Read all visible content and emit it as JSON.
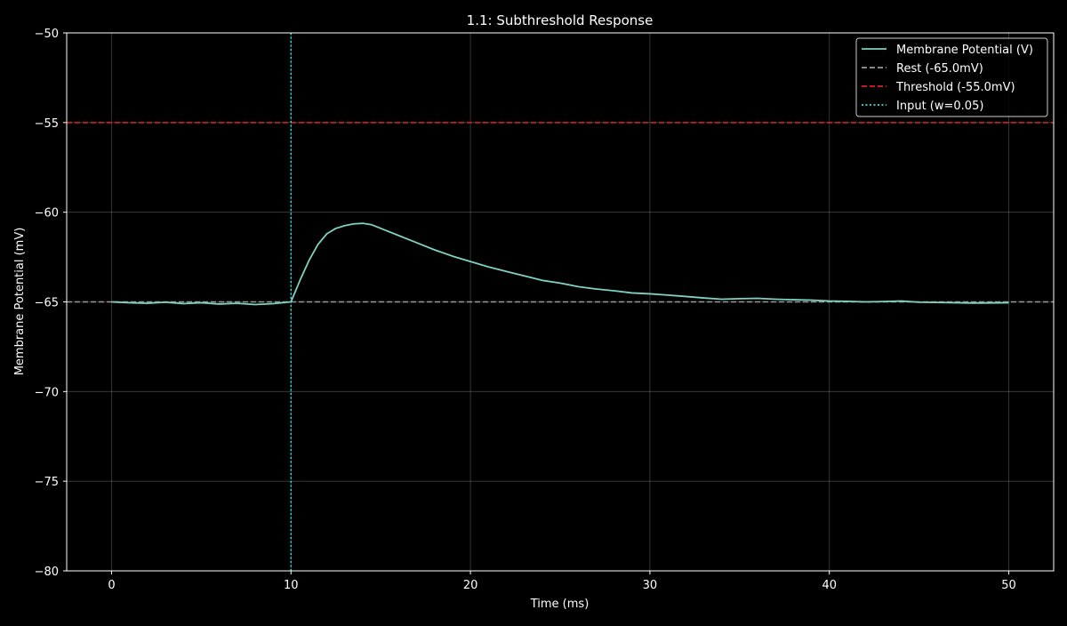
{
  "chart_data": {
    "type": "line",
    "title": "1.1: Subthreshold Response",
    "xlabel": "Time (ms)",
    "ylabel": "Membrane Potential (mV)",
    "xlim": [
      -2.5,
      52.5
    ],
    "ylim": [
      -80,
      -50
    ],
    "xticks": [
      0,
      10,
      20,
      30,
      40,
      50
    ],
    "yticks": [
      -80,
      -75,
      -70,
      -65,
      -60,
      -55,
      -50
    ],
    "xtick_labels": [
      "0",
      "10",
      "20",
      "30",
      "40",
      "50"
    ],
    "ytick_labels": [
      "−80",
      "−75",
      "−70",
      "−65",
      "−60",
      "−55",
      "−50"
    ],
    "grid": true,
    "legend_position": "top-right",
    "background_color": "#000000",
    "series": [
      {
        "name": "Membrane Potential (V)",
        "color": "#7fd1c0",
        "style": "solid",
        "x": [
          0,
          1,
          2,
          3,
          4,
          5,
          6,
          7,
          8,
          9,
          10,
          10.5,
          11,
          11.5,
          12,
          12.5,
          13,
          13.5,
          14,
          14.5,
          15,
          16,
          17,
          18,
          19,
          20,
          21,
          22,
          23,
          24,
          25,
          26,
          27,
          28,
          29,
          30,
          31,
          32,
          33,
          34,
          35,
          36,
          37,
          38,
          39,
          40,
          41,
          42,
          43,
          44,
          45,
          46,
          47,
          48,
          49,
          50
        ],
        "y": [
          -65.0,
          -65.05,
          -65.08,
          -65.02,
          -65.1,
          -65.05,
          -65.12,
          -65.08,
          -65.15,
          -65.1,
          -65.0,
          -63.8,
          -62.7,
          -61.8,
          -61.2,
          -60.9,
          -60.75,
          -60.65,
          -60.62,
          -60.7,
          -60.9,
          -61.3,
          -61.7,
          -62.1,
          -62.45,
          -62.75,
          -63.05,
          -63.3,
          -63.55,
          -63.8,
          -63.95,
          -64.15,
          -64.28,
          -64.38,
          -64.5,
          -64.55,
          -64.62,
          -64.7,
          -64.78,
          -64.85,
          -64.82,
          -64.8,
          -64.85,
          -64.88,
          -64.9,
          -64.95,
          -64.97,
          -65.0,
          -64.98,
          -64.95,
          -65.02,
          -65.03,
          -65.05,
          -65.07,
          -65.06,
          -65.05
        ]
      },
      {
        "name": "Rest (-65.0mV)",
        "color": "#9a9a9a",
        "style": "dashed",
        "hline": -65.0
      },
      {
        "name": "Threshold (-55.0mV)",
        "color": "#e0202a",
        "style": "dashed",
        "hline": -55.0
      },
      {
        "name": "Input (w=0.05)",
        "color": "#19e6e6",
        "style": "dotted",
        "vline": 10
      }
    ]
  }
}
